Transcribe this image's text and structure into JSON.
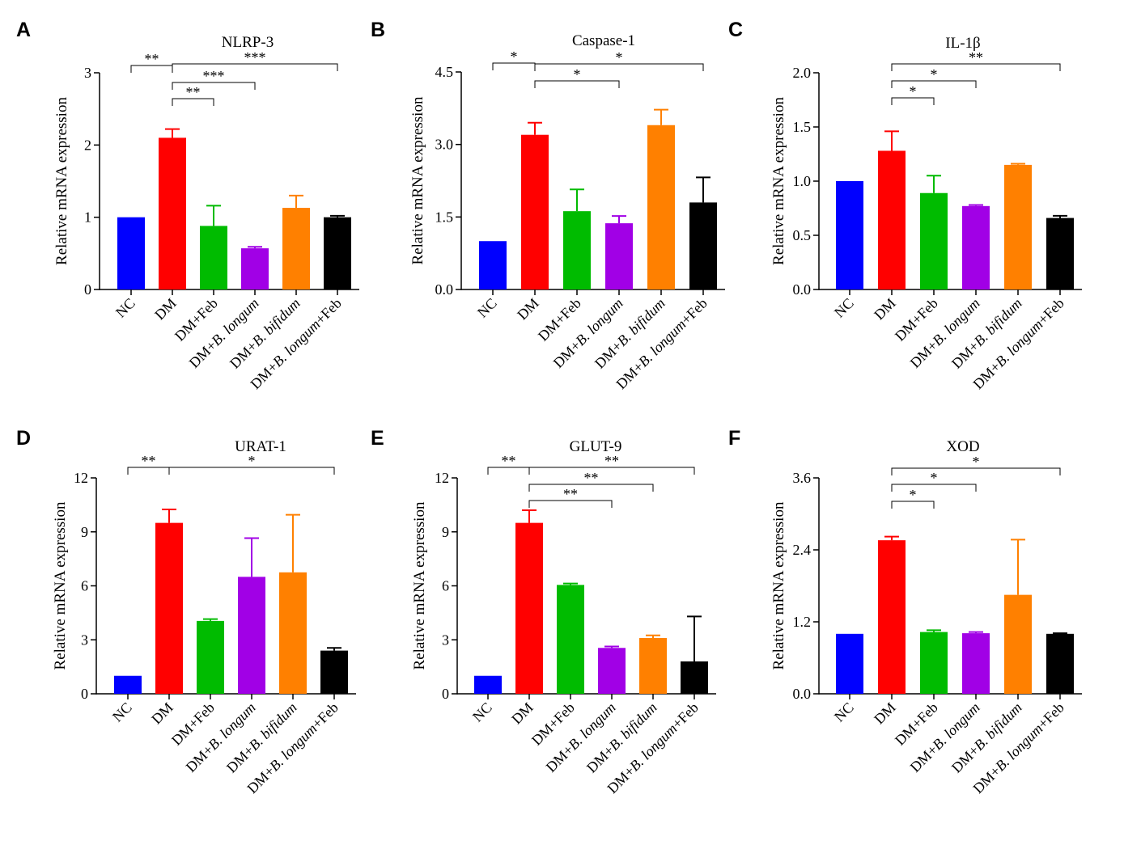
{
  "colors": {
    "NC": "#0000ff",
    "DM": "#ff0000",
    "DM+Feb": "#00bb00",
    "DM+B. longum": "#a100e6",
    "DM+B. bifidum": "#ff8000",
    "DM+B. longum+Feb": "#000000"
  },
  "chart_data": [
    {
      "panel": "A",
      "title": "NLRP-3",
      "type": "bar",
      "ylabel": "Relative mRNA expression",
      "ylim": [
        0,
        3
      ],
      "yticks": [
        "0",
        "1",
        "2",
        "3"
      ],
      "categories": [
        "NC",
        "DM",
        "DM+Feb",
        "DM+B. longum",
        "DM+B. bifidum",
        "DM+B. longum+Feb"
      ],
      "values": [
        1.0,
        2.1,
        0.88,
        0.57,
        1.13,
        1.0
      ],
      "errors": [
        0,
        0.12,
        0.28,
        0.02,
        0.17,
        0.02
      ],
      "significance": [
        {
          "from": 0,
          "to": 1,
          "label": "**"
        },
        {
          "from": 1,
          "to": 5,
          "label": "***"
        },
        {
          "from": 1,
          "to": 3,
          "label": "***"
        },
        {
          "from": 1,
          "to": 2,
          "label": "**"
        }
      ]
    },
    {
      "panel": "B",
      "title": "Caspase-1",
      "type": "bar",
      "ylabel": "Relative mRNA expression",
      "ylim": [
        0,
        4.5
      ],
      "yticks": [
        "0.0",
        "1.5",
        "3.0",
        "4.5"
      ],
      "categories": [
        "NC",
        "DM",
        "DM+Feb",
        "DM+B. longum",
        "DM+B. bifidum",
        "DM+B. longum+Feb"
      ],
      "values": [
        1.0,
        3.2,
        1.62,
        1.37,
        3.4,
        1.8
      ],
      "errors": [
        0,
        0.25,
        0.45,
        0.15,
        0.32,
        0.52
      ],
      "significance": [
        {
          "from": 0,
          "to": 1,
          "label": "*"
        },
        {
          "from": 1,
          "to": 5,
          "label": "*"
        },
        {
          "from": 1,
          "to": 3,
          "label": "*"
        }
      ]
    },
    {
      "panel": "C",
      "title": "IL-1β",
      "type": "bar",
      "ylabel": "Relative mRNA expression",
      "ylim": [
        0,
        2.0
      ],
      "yticks": [
        "0.0",
        "0.5",
        "1.0",
        "1.5",
        "2.0"
      ],
      "categories": [
        "NC",
        "DM",
        "DM+Feb",
        "DM+B. longum",
        "DM+B. bifidum",
        "DM+B. longum+Feb"
      ],
      "values": [
        1.0,
        1.28,
        0.89,
        0.77,
        1.15,
        0.66
      ],
      "errors": [
        0,
        0.18,
        0.16,
        0.01,
        0.01,
        0.02
      ],
      "significance": [
        {
          "from": 1,
          "to": 5,
          "label": "**"
        },
        {
          "from": 1,
          "to": 3,
          "label": "*"
        },
        {
          "from": 1,
          "to": 2,
          "label": "*"
        }
      ]
    },
    {
      "panel": "D",
      "title": "URAT-1",
      "type": "bar",
      "ylabel": "Relative mRNA expression",
      "ylim": [
        0,
        12
      ],
      "yticks": [
        "0",
        "3",
        "6",
        "9",
        "12"
      ],
      "categories": [
        "NC",
        "DM",
        "DM+Feb",
        "DM+B. longum",
        "DM+B. bifidum",
        "DM+B. longum+Feb"
      ],
      "values": [
        1.0,
        9.5,
        4.05,
        6.5,
        6.75,
        2.4
      ],
      "errors": [
        0,
        0.75,
        0.1,
        2.15,
        3.2,
        0.15
      ],
      "significance": [
        {
          "from": 0,
          "to": 1,
          "label": "**"
        },
        {
          "from": 1,
          "to": 5,
          "label": "*"
        }
      ]
    },
    {
      "panel": "E",
      "title": "GLUT-9",
      "type": "bar",
      "ylabel": "Relative mRNA expression",
      "ylim": [
        0,
        12
      ],
      "yticks": [
        "0",
        "3",
        "6",
        "9",
        "12"
      ],
      "categories": [
        "NC",
        "DM",
        "DM+Feb",
        "DM+B. longum",
        "DM+B. bifidum",
        "DM+B. longum+Feb"
      ],
      "values": [
        1.0,
        9.5,
        6.05,
        2.55,
        3.1,
        1.8
      ],
      "errors": [
        0,
        0.7,
        0.08,
        0.08,
        0.15,
        2.5
      ],
      "significance": [
        {
          "from": 0,
          "to": 1,
          "label": "**"
        },
        {
          "from": 1,
          "to": 5,
          "label": "**"
        },
        {
          "from": 1,
          "to": 4,
          "label": "**"
        },
        {
          "from": 1,
          "to": 3,
          "label": "**"
        }
      ]
    },
    {
      "panel": "F",
      "title": "XOD",
      "type": "bar",
      "ylabel": "Relative mRNA expression",
      "ylim": [
        0,
        3.6
      ],
      "yticks": [
        "0.0",
        "1.2",
        "2.4",
        "3.6"
      ],
      "categories": [
        "NC",
        "DM",
        "DM+Feb",
        "DM+B. longum",
        "DM+B. bifidum",
        "DM+B. longum+Feb"
      ],
      "values": [
        1.0,
        2.56,
        1.03,
        1.01,
        1.65,
        1.0
      ],
      "errors": [
        0,
        0.06,
        0.03,
        0.02,
        0.92,
        0.01
      ],
      "significance": [
        {
          "from": 1,
          "to": 5,
          "label": "*"
        },
        {
          "from": 1,
          "to": 3,
          "label": "*"
        },
        {
          "from": 1,
          "to": 2,
          "label": "*"
        }
      ]
    }
  ]
}
